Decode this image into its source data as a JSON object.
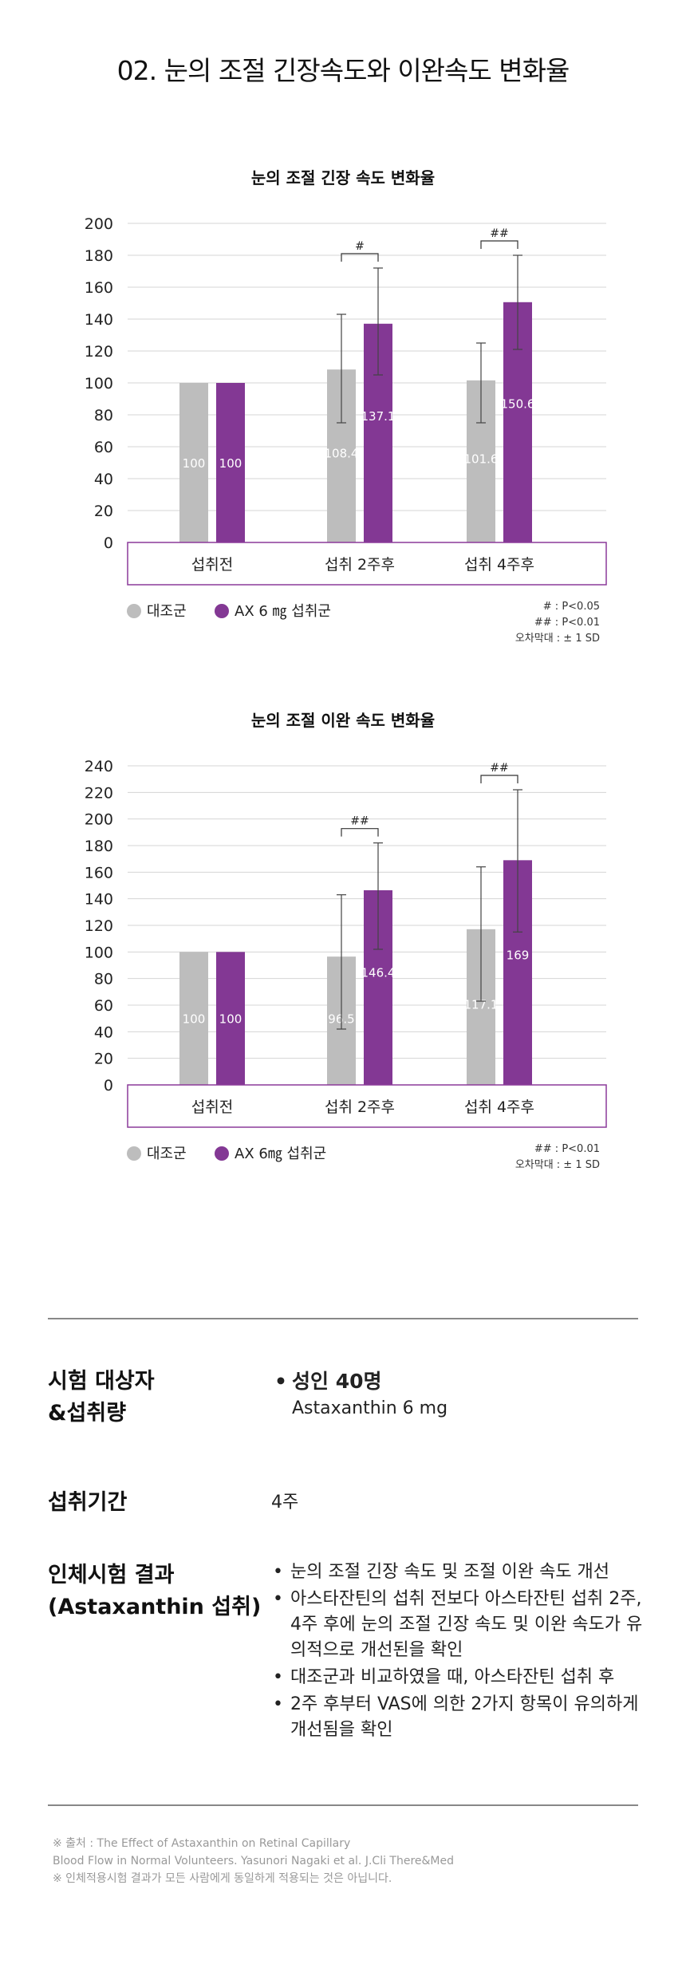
{
  "page": {
    "title": "02. 눈의 조절 긴장속도와 이완속도 변화율"
  },
  "colors": {
    "control": "#bdbdbd",
    "treatment": "#833894",
    "frame": "#8b3a9a"
  },
  "chart_data": [
    {
      "type": "bar",
      "title": "눈의 조절 긴장 속도 변화율",
      "categories": [
        "섭취전",
        "섭취 2주후",
        "섭취 4주후"
      ],
      "ylim": [
        0,
        200
      ],
      "yticks": [
        0,
        20,
        40,
        60,
        80,
        100,
        120,
        140,
        160,
        180,
        200
      ],
      "grid": true,
      "series": [
        {
          "name": "대조군",
          "values": [
            100,
            108.4,
            101.6
          ],
          "labels": [
            "100",
            "108.4",
            "101.6"
          ],
          "err_low": [
            null,
            75,
            75
          ],
          "err_high": [
            null,
            143,
            125
          ]
        },
        {
          "name": "AX 6 ㎎ 섭취군",
          "values": [
            100,
            137.1,
            150.6
          ],
          "labels": [
            "100",
            "137.1",
            "150.6"
          ],
          "err_low": [
            null,
            105,
            121
          ],
          "err_high": [
            null,
            172,
            180
          ]
        }
      ],
      "significance": [
        "",
        "#",
        "##"
      ],
      "legend_notes": [
        "# : P<0.05",
        "## : P<0.01",
        "오차막대 : ± 1 SD"
      ]
    },
    {
      "type": "bar",
      "title": "눈의 조절 이완 속도 변화율",
      "categories": [
        "섭취전",
        "섭취 2주후",
        "섭취 4주후"
      ],
      "ylim": [
        0,
        240
      ],
      "yticks": [
        0,
        20,
        40,
        60,
        80,
        100,
        120,
        140,
        160,
        180,
        200,
        220,
        240
      ],
      "grid": true,
      "series": [
        {
          "name": "대조군",
          "values": [
            100,
            96.5,
            117.1
          ],
          "labels": [
            "100",
            "96.5",
            "117.1"
          ],
          "err_low": [
            null,
            42,
            63
          ],
          "err_high": [
            null,
            143,
            164
          ]
        },
        {
          "name": "AX 6㎎ 섭취군",
          "values": [
            100,
            146.4,
            169
          ],
          "labels": [
            "100",
            "146.4",
            "169"
          ],
          "err_low": [
            null,
            102,
            115
          ],
          "err_high": [
            null,
            182,
            222
          ]
        }
      ],
      "significance": [
        "",
        "##",
        "##"
      ],
      "legend_notes": [
        "## : P<0.01",
        "오차막대 : ± 1 SD"
      ]
    }
  ],
  "info": {
    "subjects": {
      "label_line1": "시험 대상자",
      "label_line2": "&섭취량",
      "main": "성인 40명",
      "sub": "Astaxanthin 6 mg"
    },
    "period": {
      "label": "섭취기간",
      "value": "4주"
    },
    "results": {
      "label_line1": "인체시험 결과",
      "label_line2": "(Astaxanthin 섭취)",
      "bullets": [
        "눈의 조절 긴장 속도 및 조절 이완 속도 개선",
        "아스타잔틴의 섭취 전보다 아스타잔틴 섭취 2주, 4주 후에 눈의 조절 긴장 속도 및 이완 속도가 유의적으로 개선된을 확인",
        "대조군과 비교하였을 때, 아스타잔틴 섭취 후",
        "2주 후부터 VAS에 의한 2가지 항목이 유의하게 개선됨을 확인"
      ]
    }
  },
  "footnotes": {
    "line1": "※ 출처 : The Effect of Astaxanthin on Retinal Capillary",
    "line2": "Blood Flow in Normal Volunteers. Yasunori Nagaki et al. J.Cli There&Med",
    "line3": "※ 인체적용시험 결과가 모든 사람에게 동일하게 적용되는 것은 아닙니다."
  }
}
